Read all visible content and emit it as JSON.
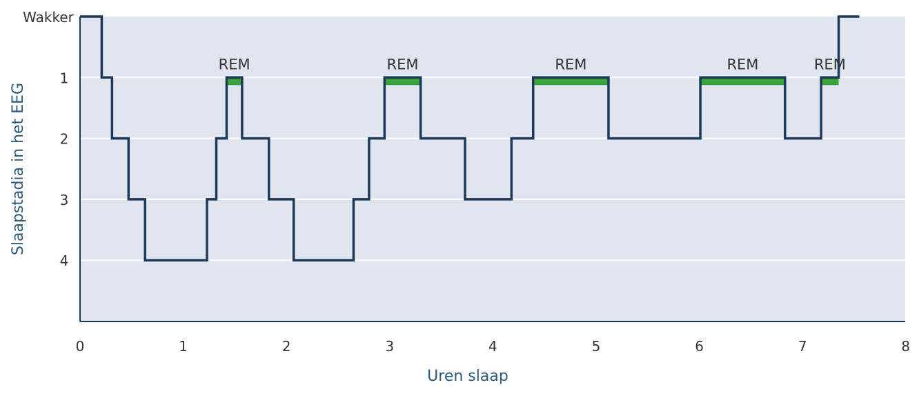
{
  "chart_data": {
    "type": "line",
    "title": "",
    "xlabel": "Uren slaap",
    "ylabel": "Slaapstadia in het EEG",
    "xlim": [
      0,
      8
    ],
    "ylim": [
      5,
      0
    ],
    "x_ticks": [
      "0",
      "1",
      "2",
      "3",
      "4",
      "5",
      "6",
      "7",
      "8"
    ],
    "y_ticks": [
      {
        "value": 0,
        "label": "Wakker"
      },
      {
        "value": 1,
        "label": "1"
      },
      {
        "value": 2,
        "label": "2"
      },
      {
        "value": 3,
        "label": "3"
      },
      {
        "value": 4,
        "label": "4"
      }
    ],
    "grid": true,
    "hypnogram": [
      {
        "start": 0.0,
        "end": 0.21,
        "stage": 0
      },
      {
        "start": 0.21,
        "end": 0.31,
        "stage": 1
      },
      {
        "start": 0.31,
        "end": 0.47,
        "stage": 2
      },
      {
        "start": 0.47,
        "end": 0.63,
        "stage": 3
      },
      {
        "start": 0.63,
        "end": 1.23,
        "stage": 4
      },
      {
        "start": 1.23,
        "end": 1.32,
        "stage": 3
      },
      {
        "start": 1.32,
        "end": 1.42,
        "stage": 2
      },
      {
        "start": 1.42,
        "end": 1.57,
        "stage": 1
      },
      {
        "start": 1.57,
        "end": 1.83,
        "stage": 2
      },
      {
        "start": 1.83,
        "end": 2.07,
        "stage": 3
      },
      {
        "start": 2.07,
        "end": 2.65,
        "stage": 4
      },
      {
        "start": 2.65,
        "end": 2.8,
        "stage": 3
      },
      {
        "start": 2.8,
        "end": 2.95,
        "stage": 2
      },
      {
        "start": 2.95,
        "end": 3.3,
        "stage": 1
      },
      {
        "start": 3.3,
        "end": 3.73,
        "stage": 2
      },
      {
        "start": 3.73,
        "end": 4.18,
        "stage": 3
      },
      {
        "start": 4.18,
        "end": 4.39,
        "stage": 2
      },
      {
        "start": 4.39,
        "end": 5.12,
        "stage": 1
      },
      {
        "start": 5.12,
        "end": 6.01,
        "stage": 2
      },
      {
        "start": 6.01,
        "end": 6.83,
        "stage": 1
      },
      {
        "start": 6.83,
        "end": 7.18,
        "stage": 2
      },
      {
        "start": 7.18,
        "end": 7.35,
        "stage": 1
      },
      {
        "start": 7.35,
        "end": 7.55,
        "stage": 0
      }
    ],
    "rem_periods": [
      {
        "label": "REM",
        "start": 1.42,
        "end": 1.57
      },
      {
        "label": "REM",
        "start": 2.95,
        "end": 3.3
      },
      {
        "label": "REM",
        "start": 4.39,
        "end": 5.12
      },
      {
        "label": "REM",
        "start": 6.01,
        "end": 6.83
      },
      {
        "label": "REM",
        "start": 7.18,
        "end": 7.35
      }
    ],
    "colors": {
      "plot_background": "#e1e5ef",
      "grid": "#ffffff",
      "line": "#1c3a57",
      "rem": "#3aa23a",
      "axis_title": "#2c5a78",
      "tick": "#333333"
    }
  }
}
